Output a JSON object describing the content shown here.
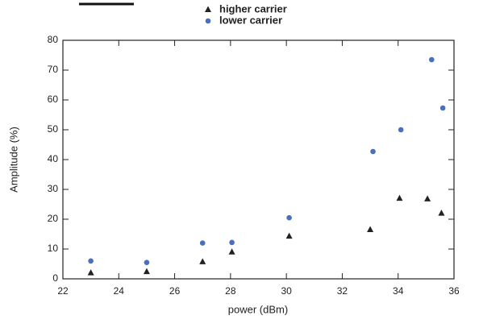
{
  "chart_data": {
    "type": "scatter",
    "xlabel": "power (dBm)",
    "ylabel": "Amplitude (%)",
    "xlim": [
      22,
      36
    ],
    "xticks": [
      22,
      24,
      26,
      28,
      30,
      32,
      34,
      36
    ],
    "ylim": [
      0,
      80
    ],
    "yticks": [
      0,
      10,
      20,
      30,
      40,
      50,
      60,
      70,
      80
    ],
    "legend": "top",
    "series": [
      {
        "name": "higher carrier",
        "color": "#222222",
        "marker": "triangle",
        "x": [
          23.0,
          25.0,
          27.0,
          28.05,
          30.1,
          33.0,
          34.05,
          35.05,
          35.55
        ],
        "values": [
          2,
          2.4,
          5.7,
          9,
          14.3,
          16.5,
          27,
          26.8,
          22
        ]
      },
      {
        "name": "lower carrier",
        "color": "#4a6fc0",
        "marker": "circle",
        "x": [
          23.0,
          25.0,
          27.0,
          28.05,
          30.1,
          33.1,
          34.1,
          35.2,
          35.6
        ],
        "values": [
          6,
          5.5,
          12,
          12.2,
          20.5,
          42.7,
          50,
          73.5,
          57.3
        ]
      }
    ]
  }
}
